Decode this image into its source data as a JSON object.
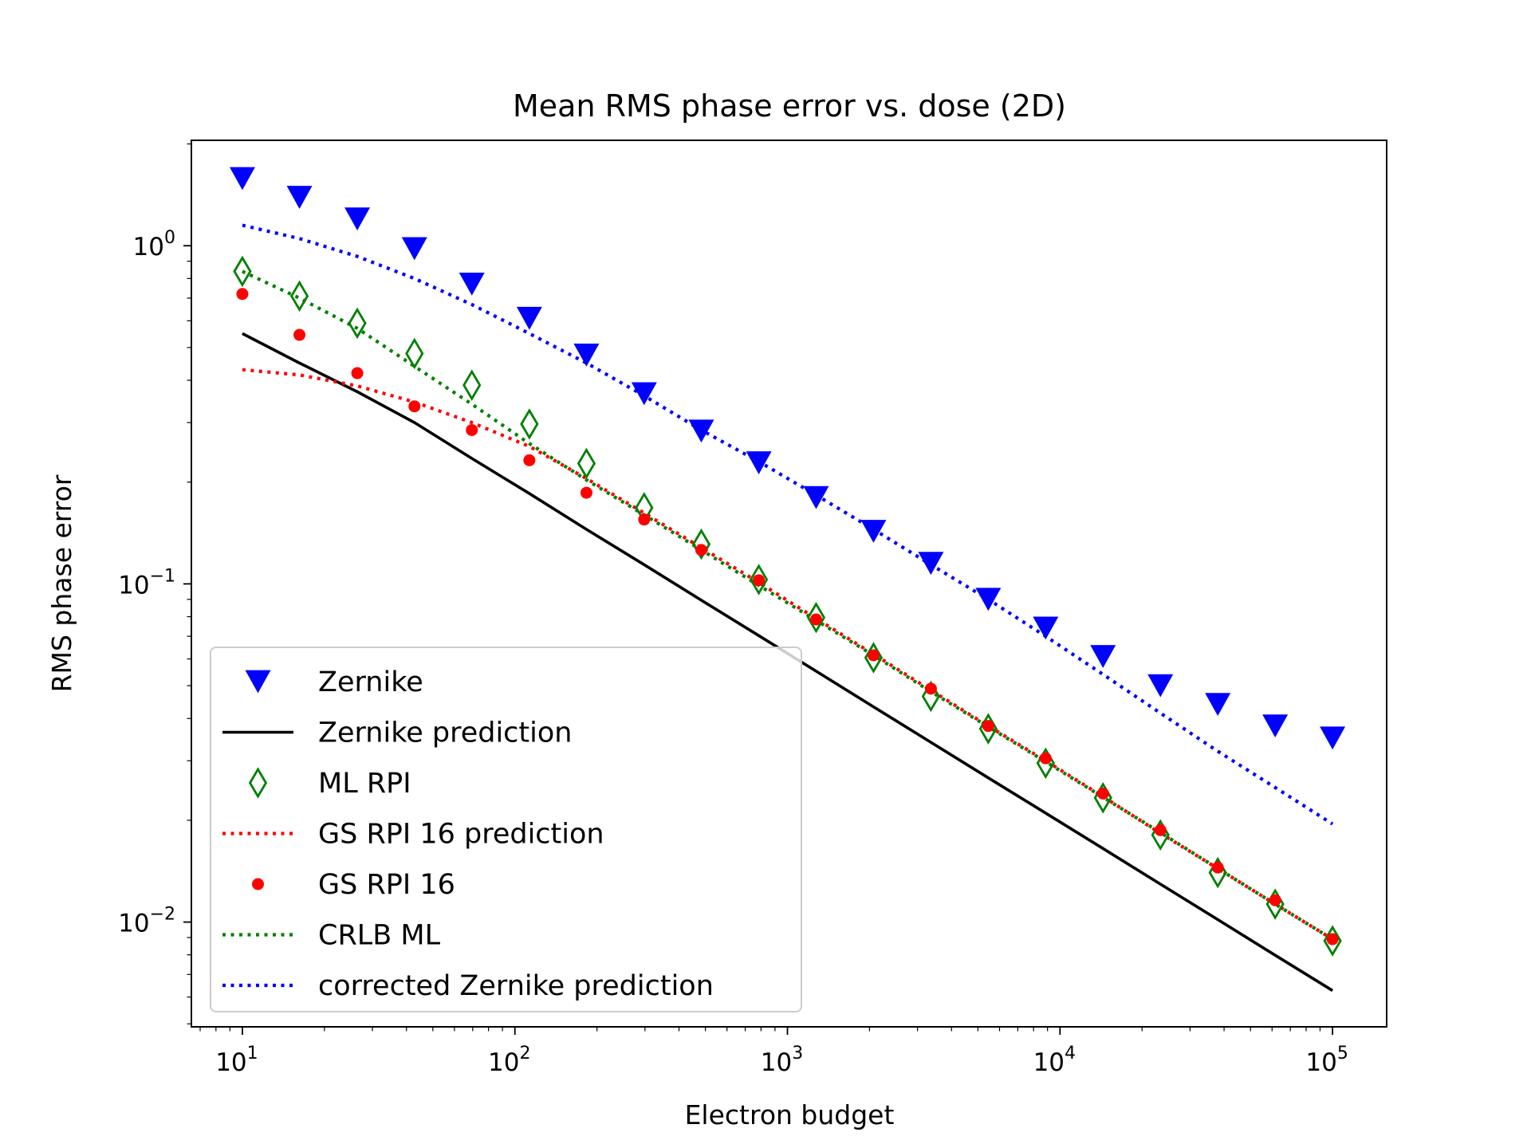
{
  "chart_data": {
    "type": "scatter",
    "title": "Mean RMS phase error vs. dose (2D)",
    "xlabel": "Electron budget",
    "ylabel": "RMS phase error",
    "xscale": "log",
    "yscale": "log",
    "xlim": [
      6.5,
      158000
    ],
    "ylim": [
      0.0049,
      2.05
    ],
    "grid": false,
    "legend_position": "lower-left",
    "x_ticks": [
      {
        "value": 10,
        "base": "10",
        "exp": "1"
      },
      {
        "value": 100,
        "base": "10",
        "exp": "2"
      },
      {
        "value": 1000,
        "base": "10",
        "exp": "3"
      },
      {
        "value": 10000,
        "base": "10",
        "exp": "4"
      },
      {
        "value": 100000,
        "base": "10",
        "exp": "5"
      }
    ],
    "y_ticks": [
      {
        "value": 0.01,
        "base": "10",
        "exp": "−2"
      },
      {
        "value": 0.1,
        "base": "10",
        "exp": "−1"
      },
      {
        "value": 1,
        "base": "10",
        "exp": "0"
      }
    ],
    "x": [
      10,
      16.2,
      26.4,
      42.8,
      69.5,
      113,
      183,
      298,
      483,
      785,
      1274,
      2069,
      3360,
      5456,
      8859,
      14384,
      23357,
      37927,
      61585,
      100000
    ],
    "series": [
      {
        "name": "Zernike",
        "kind": "marker",
        "marker": "triangle-down",
        "color": "#0000ff",
        "values": [
          1.58,
          1.39,
          1.2,
          0.98,
          0.77,
          0.61,
          0.475,
          0.365,
          0.283,
          0.228,
          0.18,
          0.143,
          0.115,
          0.09,
          0.074,
          0.061,
          0.05,
          0.044,
          0.038,
          0.035
        ]
      },
      {
        "name": "Zernike prediction",
        "kind": "line",
        "dash": "solid",
        "color": "#000000",
        "values": [
          0.55,
          0.45,
          0.37,
          0.3,
          0.235,
          0.185,
          0.145,
          0.114,
          0.0895,
          0.0703,
          0.0552,
          0.0433,
          0.034,
          0.0267,
          0.021,
          0.0165,
          0.01295,
          0.01017,
          0.00798,
          0.00627
        ]
      },
      {
        "name": "ML RPI",
        "kind": "marker",
        "marker": "thin-diamond",
        "color": "#008000",
        "values": [
          0.84,
          0.71,
          0.59,
          0.48,
          0.387,
          0.297,
          0.227,
          0.168,
          0.131,
          0.103,
          0.0795,
          0.0605,
          0.0465,
          0.0373,
          0.0295,
          0.0233,
          0.0181,
          0.014,
          0.0113,
          0.0088
        ]
      },
      {
        "name": "GS RPI 16 prediction",
        "kind": "line",
        "dash": "dotted",
        "color": "#ff0000",
        "values": [
          0.43,
          0.415,
          0.385,
          0.345,
          0.3,
          0.255,
          0.205,
          0.162,
          0.128,
          0.101,
          0.079,
          0.062,
          0.0485,
          0.038,
          0.03,
          0.0235,
          0.0183,
          0.0144,
          0.0113,
          0.0089
        ]
      },
      {
        "name": "GS RPI 16",
        "kind": "marker",
        "marker": "point",
        "color": "#ff0000",
        "values": [
          0.72,
          0.545,
          0.42,
          0.335,
          0.285,
          0.232,
          0.186,
          0.155,
          0.126,
          0.1025,
          0.0785,
          0.0615,
          0.049,
          0.038,
          0.0305,
          0.024,
          0.0187,
          0.0145,
          0.0116,
          0.0089
        ]
      },
      {
        "name": "CRLB ML",
        "kind": "line",
        "dash": "dotted",
        "color": "#008000",
        "values": [
          0.84,
          0.7,
          0.57,
          0.44,
          0.34,
          0.26,
          0.203,
          0.16,
          0.126,
          0.099,
          0.078,
          0.0615,
          0.048,
          0.0378,
          0.0298,
          0.0234,
          0.0184,
          0.0144,
          0.0113,
          0.0089
        ]
      },
      {
        "name": "corrected Zernike prediction",
        "kind": "line",
        "dash": "dotted",
        "color": "#0000ff",
        "values": [
          1.15,
          1.05,
          0.93,
          0.8,
          0.67,
          0.55,
          0.45,
          0.36,
          0.285,
          0.23,
          0.183,
          0.145,
          0.114,
          0.09,
          0.07,
          0.054,
          0.0415,
          0.032,
          0.025,
          0.0195
        ]
      }
    ]
  }
}
